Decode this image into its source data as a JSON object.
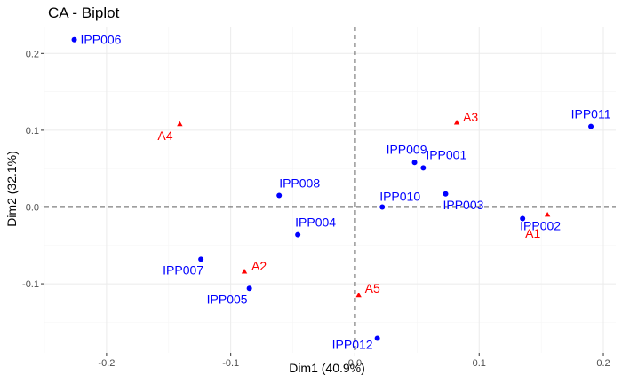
{
  "chart_data": {
    "type": "scatter",
    "title": "CA - Biplot",
    "xlabel": "Dim1 (40.9%)",
    "ylabel": "Dim2 (32.1%)",
    "xlim": [
      -0.25,
      0.21
    ],
    "ylim": [
      -0.19,
      0.235
    ],
    "x_ticks": [
      -0.2,
      -0.1,
      0.0,
      0.1,
      0.2
    ],
    "x_tick_labels": [
      "-0.2",
      "-0.1",
      "0.0",
      "0.1",
      "0.2"
    ],
    "y_ticks": [
      -0.1,
      0.0,
      0.1,
      0.2
    ],
    "y_tick_labels": [
      "-0.1",
      "0.0",
      "0.1",
      "0.2"
    ],
    "grid": true,
    "reference_lines": {
      "x": 0,
      "y": 0,
      "style": "dashed"
    },
    "series": [
      {
        "name": "",
        "role": "rows",
        "marker": "circle",
        "color": "#0000ff",
        "points": [
          {
            "label": "IPP006",
            "x": -0.226,
            "y": 0.218
          },
          {
            "label": "IPP011",
            "x": 0.19,
            "y": 0.105
          },
          {
            "label": "IPP009",
            "x": 0.048,
            "y": 0.058
          },
          {
            "label": "IPP001",
            "x": 0.055,
            "y": 0.051
          },
          {
            "label": "IPP003",
            "x": 0.073,
            "y": 0.017
          },
          {
            "label": "IPP010",
            "x": 0.022,
            "y": 0.0
          },
          {
            "label": "IPP002",
            "x": 0.135,
            "y": -0.015
          },
          {
            "label": "IPP008",
            "x": -0.061,
            "y": 0.015
          },
          {
            "label": "IPP004",
            "x": -0.046,
            "y": -0.036
          },
          {
            "label": "IPP007",
            "x": -0.124,
            "y": -0.068
          },
          {
            "label": "IPP005",
            "x": -0.085,
            "y": -0.106
          },
          {
            "label": "IPP012",
            "x": 0.018,
            "y": -0.171
          }
        ]
      },
      {
        "name": "",
        "role": "columns",
        "marker": "triangle",
        "color": "#ff0000",
        "points": [
          {
            "label": "A1",
            "x": 0.155,
            "y": -0.01
          },
          {
            "label": "A2",
            "x": -0.089,
            "y": -0.084
          },
          {
            "label": "A3",
            "x": 0.082,
            "y": 0.11
          },
          {
            "label": "A4",
            "x": -0.141,
            "y": 0.108
          },
          {
            "label": "A5",
            "x": 0.003,
            "y": -0.115
          }
        ]
      }
    ]
  }
}
